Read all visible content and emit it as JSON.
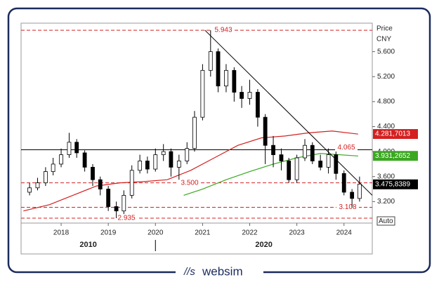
{
  "chart_data": {
    "type": "candlestick",
    "axis_label": "Price",
    "currency": "CNY",
    "x": [
      2017.33,
      2017.5,
      2017.67,
      2017.83,
      2018,
      2018.17,
      2018.33,
      2018.5,
      2018.67,
      2018.83,
      2019,
      2019.17,
      2019.33,
      2019.5,
      2019.67,
      2019.83,
      2020,
      2020.17,
      2020.33,
      2020.5,
      2020.67,
      2020.83,
      2021,
      2021.17,
      2021.33,
      2021.5,
      2021.67,
      2021.83,
      2022,
      2022.17,
      2022.33,
      2022.5,
      2022.67,
      2022.83,
      2023,
      2023.17,
      2023.33,
      2023.5,
      2023.67,
      2023.83,
      2024,
      2024.17,
      2024.33
    ],
    "open": [
      3.35,
      3.42,
      3.5,
      3.68,
      3.8,
      3.95,
      4.15,
      3.98,
      3.75,
      3.55,
      3.4,
      3.12,
      3.05,
      3.3,
      3.7,
      3.85,
      3.72,
      3.95,
      4.0,
      3.75,
      3.85,
      4.05,
      4.55,
      5.3,
      5.6,
      5.05,
      5.3,
      4.95,
      4.85,
      4.95,
      4.55,
      4.1,
      3.95,
      3.85,
      3.55,
      3.9,
      4.1,
      3.85,
      3.75,
      3.95,
      3.65,
      3.35,
      3.25
    ],
    "high": [
      3.5,
      3.58,
      3.75,
      3.9,
      4.05,
      4.3,
      4.2,
      4.02,
      3.8,
      3.6,
      3.45,
      3.2,
      3.38,
      3.78,
      3.95,
      3.92,
      4.05,
      4.12,
      4.05,
      3.95,
      4.15,
      4.65,
      5.4,
      5.943,
      5.65,
      5.4,
      5.35,
      5.05,
      5.15,
      5.0,
      4.6,
      4.25,
      4.05,
      3.9,
      3.95,
      4.2,
      4.15,
      3.95,
      4.05,
      4.0,
      3.7,
      3.4,
      3.6
    ],
    "low": [
      3.3,
      3.38,
      3.45,
      3.62,
      3.75,
      3.9,
      3.9,
      3.68,
      3.45,
      3.3,
      3.05,
      2.935,
      3.0,
      3.25,
      3.65,
      3.65,
      3.68,
      3.85,
      3.6,
      3.55,
      3.8,
      4.0,
      4.5,
      5.2,
      4.95,
      4.95,
      4.8,
      4.7,
      4.75,
      4.4,
      3.8,
      3.75,
      3.7,
      3.5,
      3.5,
      3.85,
      3.8,
      3.7,
      3.65,
      3.55,
      3.3,
      3.108,
      3.2
    ],
    "close": [
      3.42,
      3.5,
      3.68,
      3.8,
      3.95,
      4.15,
      3.98,
      3.75,
      3.55,
      3.4,
      3.12,
      3.05,
      3.3,
      3.7,
      3.85,
      3.72,
      3.95,
      4.0,
      3.75,
      3.85,
      4.05,
      4.55,
      5.3,
      5.6,
      5.05,
      5.3,
      4.95,
      4.85,
      4.95,
      4.55,
      4.1,
      3.95,
      3.85,
      3.55,
      3.9,
      4.1,
      3.85,
      3.75,
      3.95,
      3.65,
      3.35,
      3.25,
      3.48
    ],
    "last_price": {
      "value": 3.4758389,
      "label": "3.475,8389",
      "color": "#000000"
    },
    "series": [
      {
        "color": "#d42020",
        "x": [
          2017.2,
          2017.75,
          2018.25,
          2018.75,
          2019.25,
          2019.75,
          2020.25,
          2020.75,
          2021.25,
          2021.75,
          2022.25,
          2022.75,
          2023.25,
          2023.75,
          2024.3
        ],
        "values": [
          3.05,
          3.15,
          3.3,
          3.45,
          3.5,
          3.52,
          3.55,
          3.7,
          3.9,
          4.1,
          4.22,
          4.25,
          4.3,
          4.33,
          4.28
        ],
        "last": {
          "value": 4.2817013,
          "label": "4.281,7013"
        }
      },
      {
        "color": "#3aa820",
        "x": [
          2020.6,
          2021.0,
          2021.5,
          2022.0,
          2022.5,
          2023.0,
          2023.5,
          2024.3
        ],
        "values": [
          3.3,
          3.4,
          3.55,
          3.68,
          3.8,
          3.9,
          3.97,
          3.93
        ],
        "last": {
          "value": 3.9312652,
          "label": "3.931,2652"
        }
      }
    ],
    "levels": [
      5.943,
      {
        "value": 3.5,
        "label": "3.500"
      },
      3.108,
      2.935,
      4.065
    ],
    "level_color": "#d42020",
    "horizontal_line": 4.03,
    "trendline": {
      "x": [
        2021.05,
        2024.6
      ],
      "y": [
        5.943,
        3.3
      ]
    },
    "xlim": [
      2017.15,
      2024.6
    ],
    "xticks": [
      2018,
      2019,
      2020,
      2021,
      2022,
      2023,
      2024
    ],
    "decades": [
      {
        "value": 2010,
        "label": "2010"
      },
      {
        "value": 2020,
        "label": "2020"
      }
    ],
    "ylim": [
      2.856,
      6.056
    ],
    "yticks": [
      {
        "value": 3.2,
        "label": "3.200"
      },
      {
        "value": 3.6,
        "label": "3.600"
      },
      {
        "value": 4.0,
        "label": "4.000"
      },
      {
        "value": 4.4,
        "label": "4.400"
      },
      {
        "value": 4.8,
        "label": "4.800"
      },
      {
        "value": 5.2,
        "label": "5.200"
      },
      {
        "value": 5.6,
        "label": "5.600"
      }
    ],
    "scale_button": "Auto",
    "brand": "websim"
  }
}
